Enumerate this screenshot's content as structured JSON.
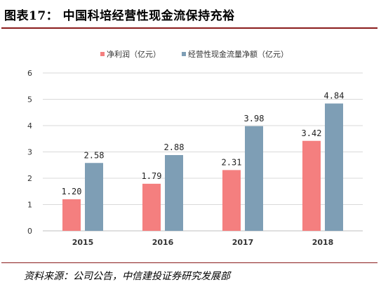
{
  "figure": {
    "title": "图表17：  中国科培经营性现金流保持充裕",
    "source": "资料来源：公司公告，中信建投证券研究发展部"
  },
  "chart_data": {
    "type": "bar",
    "categories": [
      "2015",
      "2016",
      "2017",
      "2018"
    ],
    "series": [
      {
        "name": "净利润（亿元）",
        "color": "#F47F7F",
        "values": [
          1.2,
          1.79,
          2.31,
          3.42
        ],
        "labels": [
          "1.20",
          "1.79",
          "2.31",
          "3.42"
        ]
      },
      {
        "name": "经营性现金流量净额（亿元）",
        "color": "#7E9EB5",
        "values": [
          2.58,
          2.88,
          3.98,
          4.84
        ],
        "labels": [
          "2.58",
          "2.88",
          "3.98",
          "4.84"
        ]
      }
    ],
    "ylim": [
      0,
      6
    ],
    "yticks": [
      0,
      1,
      2,
      3,
      4,
      5,
      6
    ],
    "grid": true,
    "legend_position": "top-center"
  }
}
